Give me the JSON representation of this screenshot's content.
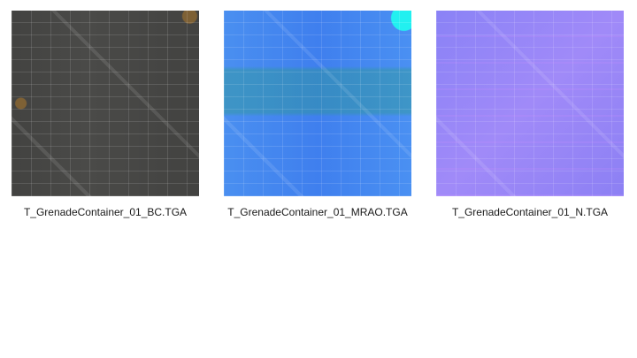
{
  "files": [
    {
      "name": "T_GrenadeContainer_01_BC.TGA",
      "thumbnail": "base-color-texture"
    },
    {
      "name": "T_GrenadeContainer_01_MRAO.TGA",
      "thumbnail": "mrao-texture"
    },
    {
      "name": "T_GrenadeContainer_01_N.TGA",
      "thumbnail": "normal-map-texture"
    }
  ]
}
